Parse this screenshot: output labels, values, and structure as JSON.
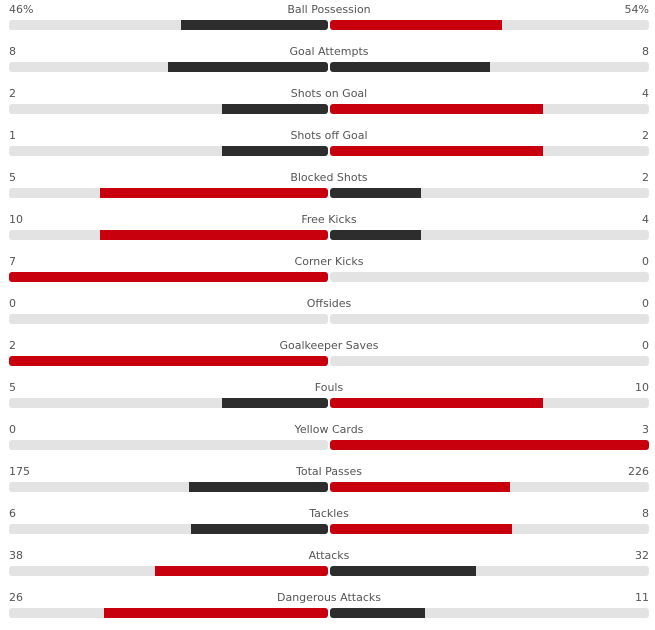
{
  "colors": {
    "leading": "#c8000d",
    "trailing": "#2d2d2d",
    "track": "#e3e3e3",
    "text": "#555555"
  },
  "stats": [
    {
      "name": "Ball Possession",
      "home": "46%",
      "away": "54%",
      "home_share": 0.46,
      "away_share": 0.54,
      "home_color": "trail",
      "away_color": "lead"
    },
    {
      "name": "Goal Attempts",
      "home": "8",
      "away": "8",
      "home_share": 0.5,
      "away_share": 0.5,
      "home_color": "trail",
      "away_color": "trail"
    },
    {
      "name": "Shots on Goal",
      "home": "2",
      "away": "4",
      "home_share": 0.333,
      "away_share": 0.667,
      "home_color": "trail",
      "away_color": "lead"
    },
    {
      "name": "Shots off Goal",
      "home": "1",
      "away": "2",
      "home_share": 0.333,
      "away_share": 0.667,
      "home_color": "trail",
      "away_color": "lead"
    },
    {
      "name": "Blocked Shots",
      "home": "5",
      "away": "2",
      "home_share": 0.714,
      "away_share": 0.286,
      "home_color": "lead",
      "away_color": "trail"
    },
    {
      "name": "Free Kicks",
      "home": "10",
      "away": "4",
      "home_share": 0.714,
      "away_share": 0.286,
      "home_color": "lead",
      "away_color": "trail"
    },
    {
      "name": "Corner Kicks",
      "home": "7",
      "away": "0",
      "home_share": 1.0,
      "away_share": 0.0,
      "home_color": "lead",
      "away_color": "trail"
    },
    {
      "name": "Offsides",
      "home": "0",
      "away": "0",
      "home_share": 0.0,
      "away_share": 0.0,
      "home_color": "trail",
      "away_color": "trail"
    },
    {
      "name": "Goalkeeper Saves",
      "home": "2",
      "away": "0",
      "home_share": 1.0,
      "away_share": 0.0,
      "home_color": "lead",
      "away_color": "trail"
    },
    {
      "name": "Fouls",
      "home": "5",
      "away": "10",
      "home_share": 0.333,
      "away_share": 0.667,
      "home_color": "trail",
      "away_color": "lead"
    },
    {
      "name": "Yellow Cards",
      "home": "0",
      "away": "3",
      "home_share": 0.0,
      "away_share": 1.0,
      "home_color": "trail",
      "away_color": "lead"
    },
    {
      "name": "Total Passes",
      "home": "175",
      "away": "226",
      "home_share": 0.436,
      "away_share": 0.564,
      "home_color": "trail",
      "away_color": "lead"
    },
    {
      "name": "Tackles",
      "home": "6",
      "away": "8",
      "home_share": 0.429,
      "away_share": 0.571,
      "home_color": "trail",
      "away_color": "lead"
    },
    {
      "name": "Attacks",
      "home": "38",
      "away": "32",
      "home_share": 0.543,
      "away_share": 0.457,
      "home_color": "lead",
      "away_color": "trail"
    },
    {
      "name": "Dangerous Attacks",
      "home": "26",
      "away": "11",
      "home_share": 0.703,
      "away_share": 0.297,
      "home_color": "lead",
      "away_color": "trail"
    }
  ]
}
